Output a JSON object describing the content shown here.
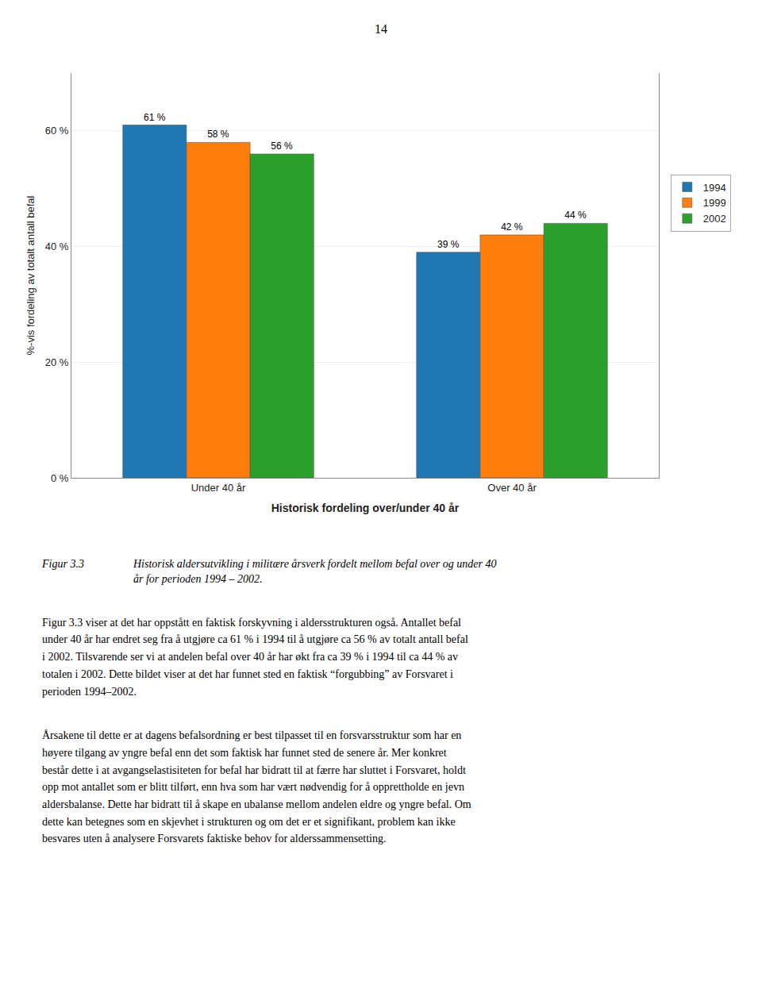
{
  "chart_data": {
    "type": "bar",
    "categories": [
      "Under 40 år",
      "Over 40 år"
    ],
    "series": [
      {
        "name": "1994",
        "values": [
          61,
          39
        ],
        "value_labels": [
          "61 %",
          "39 %"
        ]
      },
      {
        "name": "1999",
        "values": [
          58,
          42
        ],
        "value_labels": [
          "58 %",
          "42 %"
        ]
      },
      {
        "name": "2002",
        "values": [
          56,
          44
        ],
        "value_labels": [
          "56 %",
          "44 %"
        ]
      }
    ],
    "xlabel": "Historisk fordeling over/under 40 år",
    "ylabel": "%-vis fordeling av totalt antall befal",
    "ylim": [
      0,
      70
    ],
    "yticks": [
      {
        "value": 0,
        "label": "0 %"
      },
      {
        "value": 20,
        "label": "20 %"
      },
      {
        "value": 40,
        "label": "40 %"
      },
      {
        "value": 60,
        "label": "60 %"
      }
    ],
    "grid": true,
    "legend": "right",
    "data_labels": true,
    "annotations": [
      "14",
      "Figur 3.3",
      "Historisk aldersutvikling i militære årsverk fordelt mellom befal over og under 40\når for perioden 1994 – 2002.",
      "Figur 3.3 viser at det har oppstått en faktisk forskyvning i aldersstrukturen også. Antallet befal\nunder 40 år har endret seg fra å utgjøre ca 61 % i 1994 til å utgjøre ca 56 % av totalt antall befal\ni 2002. Tilsvarende ser vi at andelen befal over 40 år har økt fra ca 39 % i 1994 til ca 44 % av\ntotalen i 2002. Dette bildet viser at det har funnet sted en faktisk “forgubbing” av Forsvaret i\nperioden 1994–2002.",
      "Årsakene til dette er at dagens befalsordning er best tilpasset til en forsvarsstruktur som har en\nhøyere tilgang av yngre befal enn det som faktisk har funnet sted de senere år. Mer konkret\nbestår dette i at avgangselastisiteten for befal har bidratt til at færre har sluttet i Forsvaret, holdt\nopp mot antallet som er blitt tilført, enn hva som har vært nødvendig for å opprettholde en jevn\naldersbalanse. Dette har bidratt til å skape en ubalanse mellom andelen eldre og yngre befal. Om\ndette kan betegnes som en skjevhet i strukturen og om det er et signifikant, problem kan ikke\nbesvares uten å analysere Forsvarets faktiske behov for alderssammensetting."
    ]
  }
}
